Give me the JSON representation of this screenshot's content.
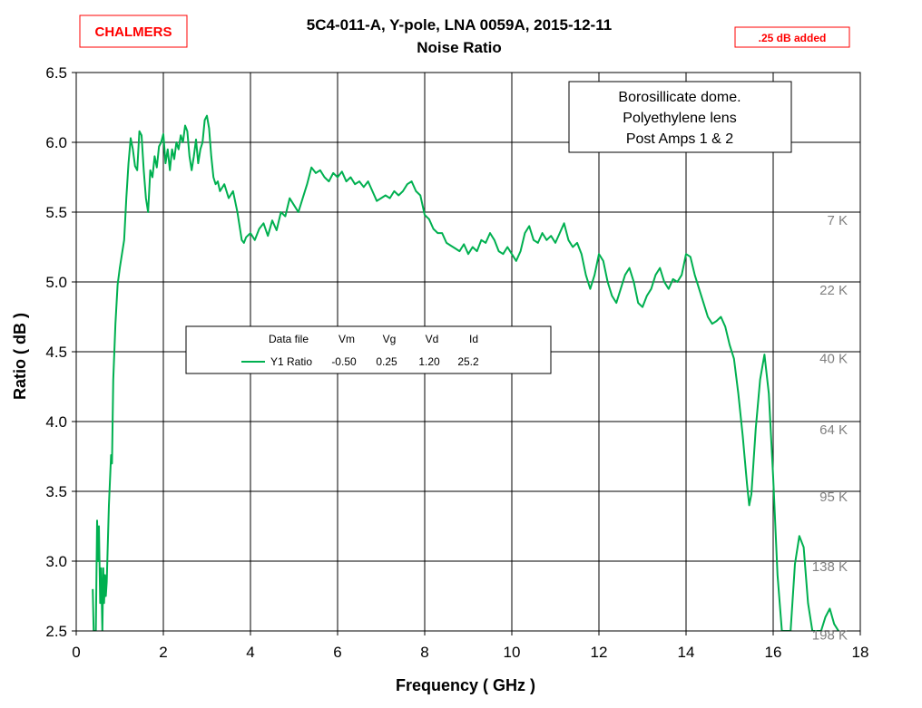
{
  "chart_data": {
    "type": "line",
    "title": "5C4-011-A,  Y-pole,  LNA 0059A,  2015-12-11",
    "subtitle": "Noise Ratio",
    "xlabel": "Frequency ( GHz )",
    "ylabel": "Ratio  ( dB )",
    "xlim": [
      0,
      18
    ],
    "ylim": [
      2.5,
      6.5
    ],
    "x_ticks": [
      "0",
      "2",
      "4",
      "6",
      "8",
      "10",
      "12",
      "14",
      "16",
      "18"
    ],
    "y_ticks": [
      "2.5",
      "3.0",
      "3.5",
      "4.0",
      "4.5",
      "5.0",
      "5.5",
      "6.0",
      "6.5"
    ],
    "grid": true,
    "temperature_labels": [
      {
        "text": "7 K",
        "y": 5.44
      },
      {
        "text": "22 K",
        "y": 4.94
      },
      {
        "text": "40 K",
        "y": 4.45
      },
      {
        "text": "64 K",
        "y": 3.94
      },
      {
        "text": "95 K",
        "y": 3.46
      },
      {
        "text": "138 K",
        "y": 2.96
      },
      {
        "text": "198 K",
        "y": 2.47
      }
    ],
    "annotation_lines": [
      "Borosillicate dome.",
      "Polyethylene lens",
      "Post Amps 1 & 2"
    ],
    "badges": {
      "left": "CHALMERS",
      "right": ".25 dB added"
    },
    "legend": {
      "headers": [
        "Data file",
        "Vm",
        "Vg",
        "Vd",
        "Id"
      ],
      "entries": [
        {
          "name": "Y1 Ratio",
          "values": [
            "-0.50",
            "0.25",
            "1.20",
            "25.2"
          ]
        }
      ]
    },
    "series": [
      {
        "name": "Y1 Ratio",
        "color": "#00b050",
        "points": [
          [
            0.38,
            2.8
          ],
          [
            0.4,
            2.5
          ],
          [
            0.45,
            2.5
          ],
          [
            0.48,
            3.29
          ],
          [
            0.5,
            3.0
          ],
          [
            0.52,
            3.25
          ],
          [
            0.55,
            2.7
          ],
          [
            0.57,
            2.95
          ],
          [
            0.6,
            2.5
          ],
          [
            0.62,
            2.95
          ],
          [
            0.64,
            2.7
          ],
          [
            0.66,
            2.9
          ],
          [
            0.68,
            2.75
          ],
          [
            0.7,
            2.85
          ],
          [
            0.75,
            3.4
          ],
          [
            0.8,
            3.76
          ],
          [
            0.82,
            3.7
          ],
          [
            0.85,
            4.3
          ],
          [
            0.9,
            4.7
          ],
          [
            0.95,
            4.98
          ],
          [
            1.0,
            5.1
          ],
          [
            1.05,
            5.2
          ],
          [
            1.1,
            5.3
          ],
          [
            1.15,
            5.6
          ],
          [
            1.2,
            5.85
          ],
          [
            1.25,
            6.03
          ],
          [
            1.3,
            5.95
          ],
          [
            1.35,
            5.83
          ],
          [
            1.4,
            5.8
          ],
          [
            1.45,
            6.08
          ],
          [
            1.5,
            6.05
          ],
          [
            1.55,
            5.8
          ],
          [
            1.6,
            5.6
          ],
          [
            1.65,
            5.5
          ],
          [
            1.7,
            5.8
          ],
          [
            1.75,
            5.75
          ],
          [
            1.8,
            5.9
          ],
          [
            1.85,
            5.82
          ],
          [
            1.9,
            5.97
          ],
          [
            1.95,
            6.0
          ],
          [
            2.0,
            6.06
          ],
          [
            2.05,
            5.85
          ],
          [
            2.1,
            5.95
          ],
          [
            2.15,
            5.8
          ],
          [
            2.2,
            5.95
          ],
          [
            2.25,
            5.88
          ],
          [
            2.3,
            6.0
          ],
          [
            2.35,
            5.95
          ],
          [
            2.4,
            6.05
          ],
          [
            2.45,
            6.0
          ],
          [
            2.5,
            6.12
          ],
          [
            2.55,
            6.08
          ],
          [
            2.6,
            5.9
          ],
          [
            2.65,
            5.8
          ],
          [
            2.7,
            5.9
          ],
          [
            2.75,
            6.02
          ],
          [
            2.8,
            5.85
          ],
          [
            2.85,
            5.95
          ],
          [
            2.9,
            6.0
          ],
          [
            2.95,
            6.16
          ],
          [
            3.0,
            6.19
          ],
          [
            3.05,
            6.1
          ],
          [
            3.1,
            5.9
          ],
          [
            3.15,
            5.75
          ],
          [
            3.2,
            5.7
          ],
          [
            3.25,
            5.72
          ],
          [
            3.3,
            5.65
          ],
          [
            3.4,
            5.7
          ],
          [
            3.5,
            5.6
          ],
          [
            3.6,
            5.65
          ],
          [
            3.7,
            5.5
          ],
          [
            3.8,
            5.3
          ],
          [
            3.85,
            5.28
          ],
          [
            3.9,
            5.32
          ],
          [
            4.0,
            5.35
          ],
          [
            4.1,
            5.3
          ],
          [
            4.2,
            5.38
          ],
          [
            4.3,
            5.42
          ],
          [
            4.4,
            5.33
          ],
          [
            4.5,
            5.44
          ],
          [
            4.6,
            5.37
          ],
          [
            4.7,
            5.5
          ],
          [
            4.8,
            5.47
          ],
          [
            4.9,
            5.6
          ],
          [
            5.0,
            5.55
          ],
          [
            5.1,
            5.5
          ],
          [
            5.2,
            5.6
          ],
          [
            5.3,
            5.7
          ],
          [
            5.4,
            5.82
          ],
          [
            5.5,
            5.78
          ],
          [
            5.6,
            5.8
          ],
          [
            5.7,
            5.75
          ],
          [
            5.8,
            5.72
          ],
          [
            5.9,
            5.78
          ],
          [
            6.0,
            5.75
          ],
          [
            6.1,
            5.79
          ],
          [
            6.2,
            5.72
          ],
          [
            6.3,
            5.75
          ],
          [
            6.4,
            5.7
          ],
          [
            6.5,
            5.72
          ],
          [
            6.6,
            5.68
          ],
          [
            6.7,
            5.72
          ],
          [
            6.8,
            5.65
          ],
          [
            6.9,
            5.58
          ],
          [
            7.0,
            5.6
          ],
          [
            7.1,
            5.62
          ],
          [
            7.2,
            5.6
          ],
          [
            7.3,
            5.65
          ],
          [
            7.4,
            5.62
          ],
          [
            7.5,
            5.65
          ],
          [
            7.6,
            5.7
          ],
          [
            7.7,
            5.72
          ],
          [
            7.8,
            5.65
          ],
          [
            7.9,
            5.62
          ],
          [
            8.0,
            5.48
          ],
          [
            8.1,
            5.45
          ],
          [
            8.2,
            5.38
          ],
          [
            8.3,
            5.35
          ],
          [
            8.4,
            5.35
          ],
          [
            8.5,
            5.28
          ],
          [
            8.6,
            5.26
          ],
          [
            8.7,
            5.24
          ],
          [
            8.8,
            5.22
          ],
          [
            8.9,
            5.27
          ],
          [
            9.0,
            5.2
          ],
          [
            9.1,
            5.25
          ],
          [
            9.2,
            5.22
          ],
          [
            9.3,
            5.3
          ],
          [
            9.4,
            5.28
          ],
          [
            9.5,
            5.35
          ],
          [
            9.6,
            5.3
          ],
          [
            9.7,
            5.22
          ],
          [
            9.8,
            5.2
          ],
          [
            9.9,
            5.25
          ],
          [
            10.0,
            5.2
          ],
          [
            10.1,
            5.15
          ],
          [
            10.2,
            5.22
          ],
          [
            10.3,
            5.35
          ],
          [
            10.4,
            5.4
          ],
          [
            10.5,
            5.3
          ],
          [
            10.6,
            5.28
          ],
          [
            10.7,
            5.35
          ],
          [
            10.8,
            5.3
          ],
          [
            10.9,
            5.33
          ],
          [
            11.0,
            5.28
          ],
          [
            11.1,
            5.35
          ],
          [
            11.2,
            5.42
          ],
          [
            11.3,
            5.3
          ],
          [
            11.4,
            5.25
          ],
          [
            11.5,
            5.28
          ],
          [
            11.6,
            5.2
          ],
          [
            11.7,
            5.05
          ],
          [
            11.8,
            4.95
          ],
          [
            11.9,
            5.05
          ],
          [
            12.0,
            5.2
          ],
          [
            12.1,
            5.15
          ],
          [
            12.2,
            5.0
          ],
          [
            12.3,
            4.9
          ],
          [
            12.4,
            4.85
          ],
          [
            12.5,
            4.95
          ],
          [
            12.6,
            5.05
          ],
          [
            12.7,
            5.1
          ],
          [
            12.8,
            5.0
          ],
          [
            12.9,
            4.85
          ],
          [
            13.0,
            4.82
          ],
          [
            13.1,
            4.9
          ],
          [
            13.2,
            4.95
          ],
          [
            13.3,
            5.05
          ],
          [
            13.4,
            5.1
          ],
          [
            13.5,
            5.0
          ],
          [
            13.6,
            4.95
          ],
          [
            13.7,
            5.02
          ],
          [
            13.8,
            5.0
          ],
          [
            13.9,
            5.05
          ],
          [
            14.0,
            5.2
          ],
          [
            14.1,
            5.18
          ],
          [
            14.2,
            5.05
          ],
          [
            14.3,
            4.95
          ],
          [
            14.4,
            4.85
          ],
          [
            14.5,
            4.75
          ],
          [
            14.6,
            4.7
          ],
          [
            14.7,
            4.72
          ],
          [
            14.8,
            4.75
          ],
          [
            14.9,
            4.68
          ],
          [
            15.0,
            4.55
          ],
          [
            15.1,
            4.45
          ],
          [
            15.2,
            4.2
          ],
          [
            15.3,
            3.9
          ],
          [
            15.4,
            3.55
          ],
          [
            15.45,
            3.4
          ],
          [
            15.5,
            3.48
          ],
          [
            15.6,
            3.95
          ],
          [
            15.7,
            4.3
          ],
          [
            15.8,
            4.48
          ],
          [
            15.9,
            4.2
          ],
          [
            16.0,
            3.6
          ],
          [
            16.1,
            2.9
          ],
          [
            16.2,
            2.5
          ],
          [
            16.4,
            2.5
          ],
          [
            16.5,
            2.98
          ],
          [
            16.6,
            3.18
          ],
          [
            16.7,
            3.1
          ],
          [
            16.8,
            2.7
          ],
          [
            16.9,
            2.5
          ],
          [
            17.1,
            2.5
          ],
          [
            17.2,
            2.6
          ],
          [
            17.3,
            2.66
          ],
          [
            17.4,
            2.55
          ],
          [
            17.5,
            2.5
          ]
        ]
      }
    ]
  }
}
